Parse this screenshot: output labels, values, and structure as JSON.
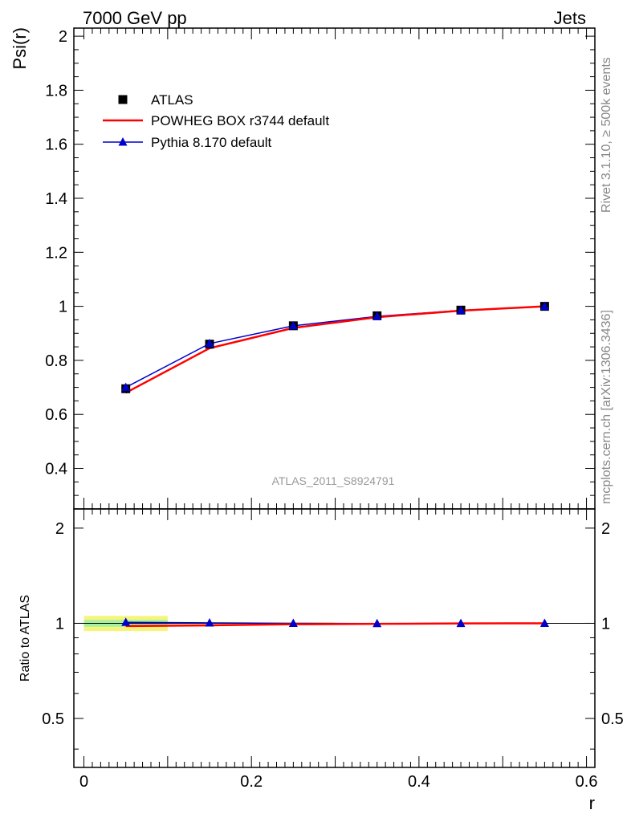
{
  "header": {
    "left": "7000 GeV pp",
    "right": "Jets"
  },
  "side_text": {
    "rivet": "Rivet 3.1.10, ≥ 500k events",
    "mcplots": "mcplots.cern.ch [arXiv:1306.3436]"
  },
  "watermark": "ATLAS_2011_S8924791",
  "chart_data": [
    {
      "type": "line",
      "title": "",
      "xlabel": "",
      "ylabel": "Psi(r)",
      "xlim": [
        -0.012,
        0.61
      ],
      "ylim": [
        0.25,
        2.03
      ],
      "yticks": [
        0.4,
        0.6,
        0.8,
        1,
        1.2,
        1.4,
        1.6,
        1.8,
        2
      ],
      "ytick_labels": [
        "0.4",
        "0.6",
        "0.8",
        "1",
        "1.2",
        "1.4",
        "1.6",
        "1.8",
        "2"
      ],
      "grid": false,
      "legend_position": "top-left",
      "x": [
        0.05,
        0.15,
        0.25,
        0.35,
        0.45,
        0.55
      ],
      "series": [
        {
          "name": "ATLAS",
          "marker": "square",
          "color": "#000000",
          "values": [
            0.695,
            0.86,
            0.928,
            0.965,
            0.986,
            1.0
          ]
        },
        {
          "name": "POWHEG BOX r3744 default",
          "marker": "none",
          "color": "#ff0000",
          "values": [
            0.68,
            0.845,
            0.92,
            0.96,
            0.984,
            1.0
          ]
        },
        {
          "name": "Pythia 8.170 default",
          "marker": "triangle",
          "color": "#0000cc",
          "values": [
            0.7,
            0.862,
            0.928,
            0.963,
            0.985,
            1.0
          ]
        }
      ]
    },
    {
      "type": "line",
      "title": "",
      "xlabel": "r",
      "ylabel": "Ratio to ATLAS",
      "xlim": [
        -0.012,
        0.61
      ],
      "ylim": [
        0.35,
        2.3
      ],
      "xticks": [
        0,
        0.2,
        0.4,
        0.6
      ],
      "xtick_labels": [
        "0",
        "0.2",
        "0.4",
        "0.6"
      ],
      "yticks": [
        0.5,
        1,
        2
      ],
      "ytick_labels": [
        "0.5",
        "1",
        "2"
      ],
      "y_scale": "log",
      "grid": false,
      "x": [
        0.05,
        0.15,
        0.25,
        0.35,
        0.45,
        0.55
      ],
      "bands": [
        {
          "x_range": [
            0,
            0.1
          ],
          "y_range": [
            0.945,
            1.055
          ],
          "color": "#f4f57a"
        },
        {
          "x_range": [
            0,
            0.1
          ],
          "y_range": [
            0.975,
            1.025
          ],
          "color": "#a8f0a0"
        },
        {
          "x_range": [
            0.1,
            0.2
          ],
          "y_range": [
            0.99,
            1.01
          ],
          "color": "#f4f57a"
        },
        {
          "x_range": [
            0.1,
            0.2
          ],
          "y_range": [
            0.995,
            1.005
          ],
          "color": "#a8f0a0"
        },
        {
          "x_range": [
            0.2,
            0.3
          ],
          "y_range": [
            0.993,
            1.007
          ],
          "color": "#f4f57a"
        }
      ],
      "series": [
        {
          "name": "POWHEG BOX r3744 default",
          "marker": "none",
          "color": "#ff0000",
          "values": [
            0.98,
            0.985,
            0.993,
            0.996,
            0.999,
            1.0
          ]
        },
        {
          "name": "Pythia 8.170 default",
          "marker": "triangle",
          "color": "#0000cc",
          "values": [
            1.007,
            1.003,
            1.0,
            0.998,
            0.999,
            1.0
          ]
        }
      ]
    }
  ]
}
